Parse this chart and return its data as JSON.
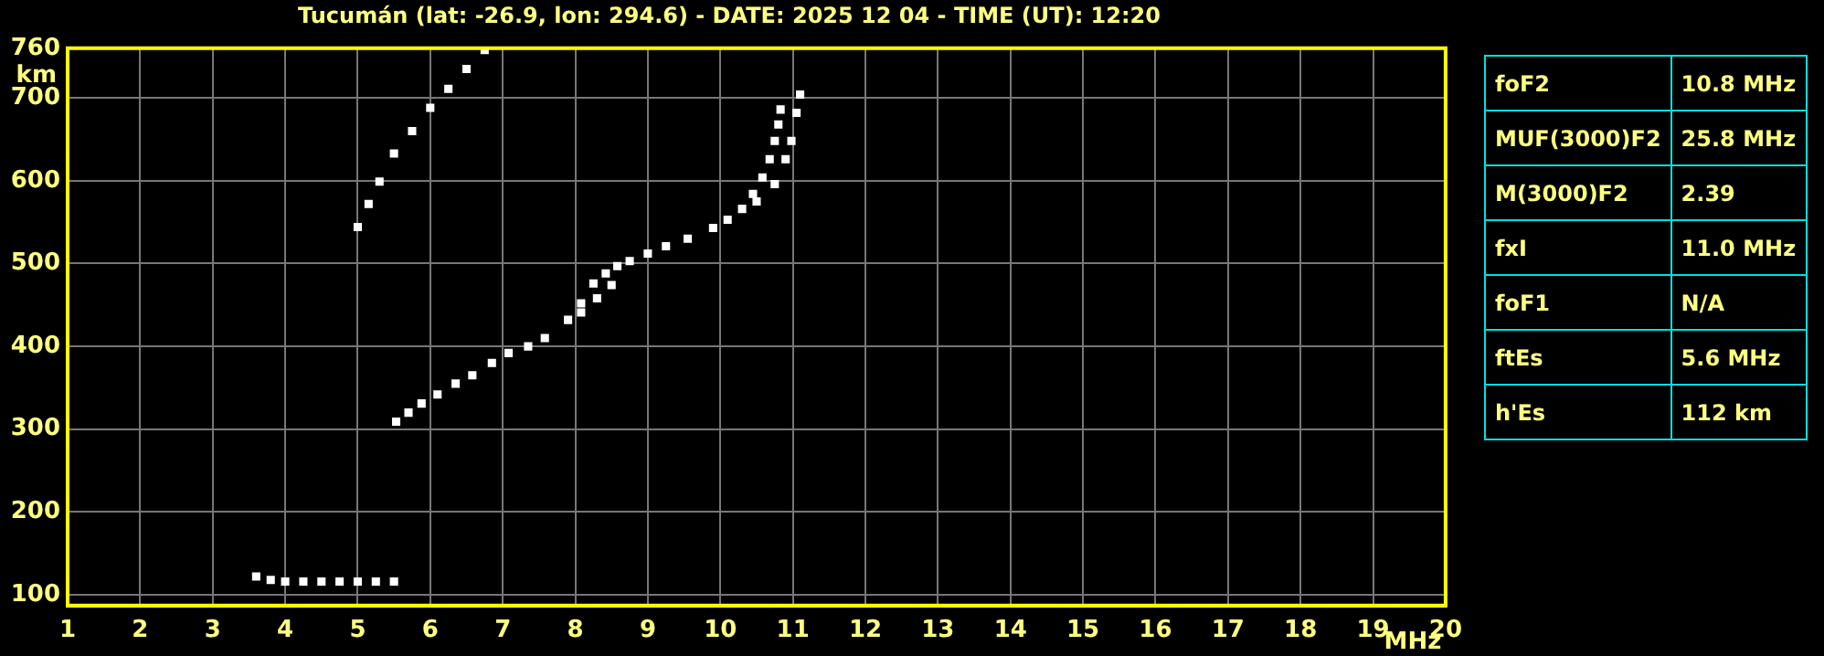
{
  "chart_data": [
    {
      "type": "scatter",
      "title": "Tucumán (lat: -26.9, lon: 294.6) - DATE: 2025 12 04 - TIME (UT): 12:20",
      "xlabel": "MHz",
      "ylabel": "km",
      "marker": "square",
      "grid": true,
      "legend": false,
      "xlim": [
        1,
        20
      ],
      "xticks": [
        1,
        2,
        3,
        4,
        5,
        6,
        7,
        8,
        9,
        10,
        11,
        12,
        13,
        14,
        15,
        16,
        17,
        18,
        19,
        20
      ],
      "ylim": [
        87,
        760
      ],
      "yticks": [
        100,
        200,
        300,
        400,
        500,
        600,
        700,
        760
      ],
      "series": [
        {
          "color": "#ffffff",
          "x": [
            3.6,
            3.8,
            4.0,
            4.25,
            4.5,
            4.75,
            5.0,
            5.25,
            5.5
          ],
          "values": [
            122,
            118,
            116,
            116,
            116,
            116,
            116,
            116,
            116
          ]
        },
        {
          "color": "#ffffff",
          "x": [
            5.0,
            5.15,
            5.3,
            5.5,
            5.75,
            6.0,
            6.25,
            6.5,
            6.75
          ],
          "values": [
            544,
            572,
            599,
            633,
            660,
            688,
            711,
            735,
            758
          ]
        },
        {
          "color": "#ffffff",
          "x": [
            5.53,
            5.7,
            5.88,
            6.1,
            6.35,
            6.58,
            6.85,
            7.08,
            7.35,
            7.58,
            7.9,
            8.08,
            8.25,
            8.42,
            8.58,
            8.75,
            9.0,
            9.25,
            9.55,
            9.9,
            10.1,
            10.3,
            10.45,
            10.58,
            10.68,
            10.75,
            10.8,
            10.83
          ],
          "values": [
            309,
            320,
            331,
            342,
            355,
            365,
            380,
            392,
            400,
            410,
            432,
            452,
            476,
            488,
            497,
            503,
            512,
            521,
            530,
            543,
            553,
            566,
            584,
            604,
            626,
            648,
            668,
            686
          ]
        },
        {
          "color": "#ffffff",
          "x": [
            8.08,
            8.3,
            8.5
          ],
          "values": [
            441,
            458,
            474
          ]
        },
        {
          "color": "#ffffff",
          "x": [
            10.5,
            10.75,
            10.9,
            10.98,
            11.05,
            11.1
          ],
          "values": [
            575,
            596,
            626,
            648,
            682,
            704
          ]
        }
      ]
    },
    {
      "type": "other",
      "y_categories": [
        "foF2",
        "MUF(3000)F2",
        "M(3000)F2",
        "fxI",
        "foF1",
        "ftEs",
        "h'Es"
      ],
      "cell_labels": [
        [
          "10.8 MHz"
        ],
        [
          "25.8 MHz"
        ],
        [
          "2.39"
        ],
        [
          "11.0 MHz"
        ],
        [
          "N/A"
        ],
        [
          "5.6 MHz"
        ],
        [
          "112 km"
        ]
      ]
    }
  ]
}
